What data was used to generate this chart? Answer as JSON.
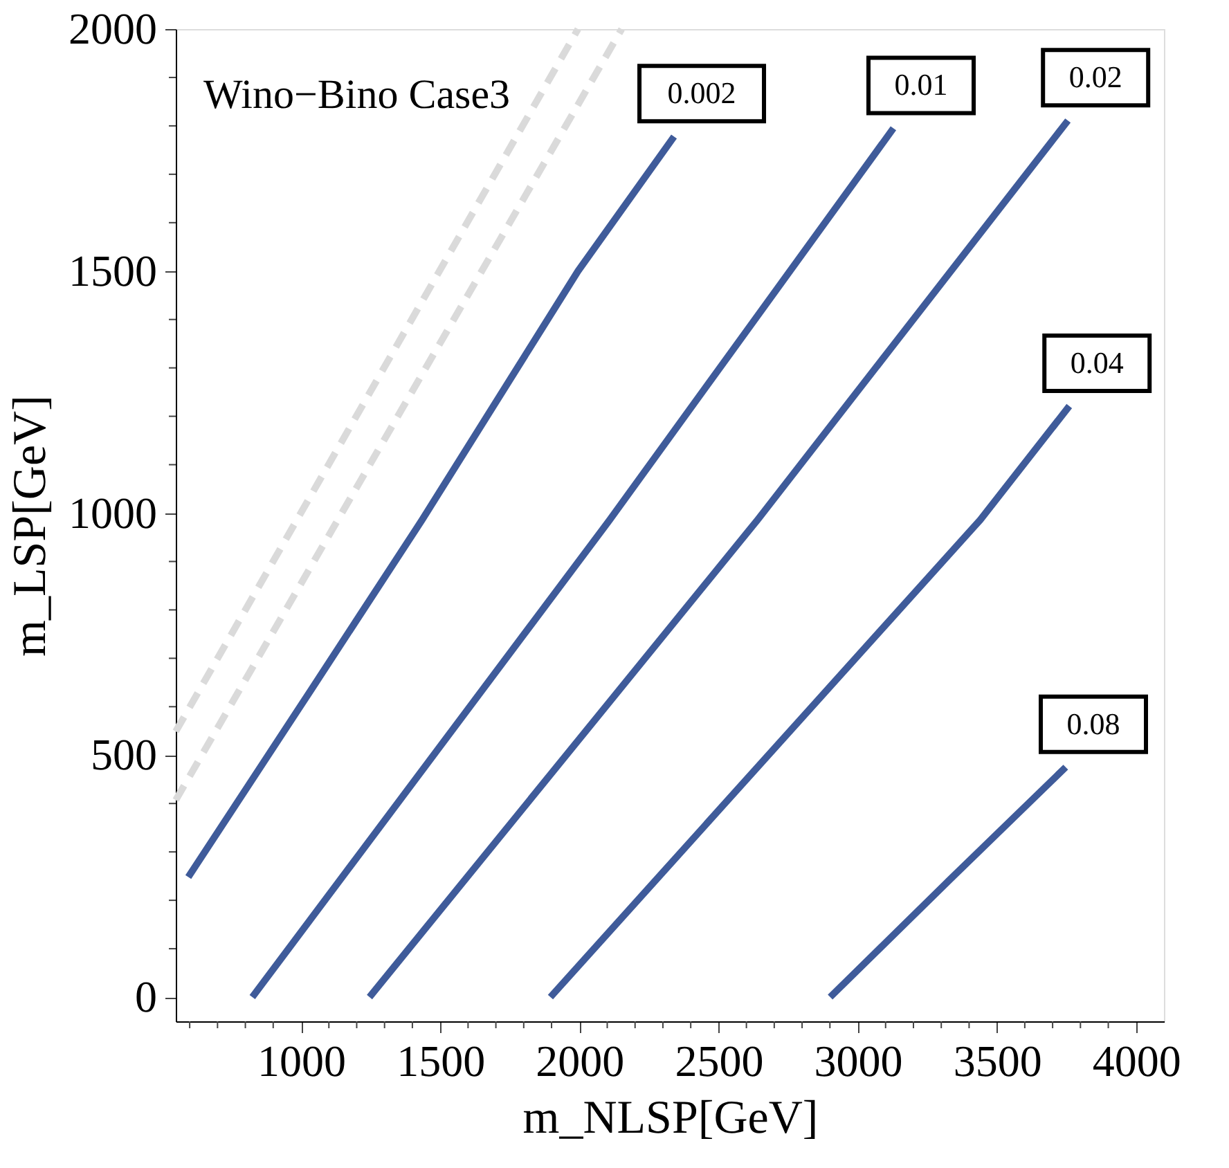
{
  "chart_data": {
    "type": "line",
    "xlabel": "m_NLSP[GeV]",
    "ylabel": "m_LSP[GeV]",
    "xlim": [
      550,
      4100
    ],
    "ylim": [
      -50,
      2000
    ],
    "xticks": [
      {
        "value": 600,
        "label": null
      },
      {
        "value": 700,
        "label": null
      },
      {
        "value": 800,
        "label": null
      },
      {
        "value": 900,
        "label": null
      },
      1000,
      {
        "value": 1100,
        "label": null
      },
      {
        "value": 1200,
        "label": null
      },
      {
        "value": 1300,
        "label": null
      },
      {
        "value": 1400,
        "label": null
      },
      1500,
      {
        "value": 1600,
        "label": null
      },
      {
        "value": 1700,
        "label": null
      },
      {
        "value": 1800,
        "label": null
      },
      {
        "value": 1900,
        "label": null
      },
      2000,
      {
        "value": 2100,
        "label": null
      },
      {
        "value": 2200,
        "label": null
      },
      {
        "value": 2300,
        "label": null
      },
      {
        "value": 2400,
        "label": null
      },
      2500,
      {
        "value": 2600,
        "label": null
      },
      {
        "value": 2700,
        "label": null
      },
      {
        "value": 2800,
        "label": null
      },
      {
        "value": 2900,
        "label": null
      },
      3000,
      {
        "value": 3100,
        "label": null
      },
      {
        "value": 3200,
        "label": null
      },
      {
        "value": 3300,
        "label": null
      },
      {
        "value": 3400,
        "label": null
      },
      3500,
      {
        "value": 3600,
        "label": null
      },
      {
        "value": 3700,
        "label": null
      },
      {
        "value": 3800,
        "label": null
      },
      {
        "value": 3900,
        "label": null
      },
      4000
    ],
    "yticks": [
      0,
      {
        "value": 100,
        "label": null
      },
      {
        "value": 200,
        "label": null
      },
      {
        "value": 300,
        "label": null
      },
      {
        "value": 400,
        "label": null
      },
      500,
      {
        "value": 600,
        "label": null
      },
      {
        "value": 700,
        "label": null
      },
      {
        "value": 800,
        "label": null
      },
      {
        "value": 900,
        "label": null
      },
      1000,
      {
        "value": 1100,
        "label": null
      },
      {
        "value": 1200,
        "label": null
      },
      {
        "value": 1300,
        "label": null
      },
      {
        "value": 1400,
        "label": null
      },
      1500,
      {
        "value": 1600,
        "label": null
      },
      {
        "value": 1700,
        "label": null
      },
      {
        "value": 1800,
        "label": null
      },
      {
        "value": 1900,
        "label": null
      },
      2000
    ],
    "grid": false,
    "series": [
      {
        "color": "#dadada",
        "line_style": "dashed",
        "x": [
          550,
          1995
        ],
        "values": [
          549,
          2000
        ]
      },
      {
        "color": "#dadada",
        "line_style": "dashed",
        "x": [
          550,
          2152
        ],
        "values": [
          407,
          2000
        ]
      },
      {
        "color": "#3f5b9a",
        "line_style": "solid",
        "x": [
          595,
          1033,
          1435,
          1995,
          2340
        ],
        "values": [
          248,
          632,
          986,
          1500,
          1778
        ]
      },
      {
        "color": "#3f5b9a",
        "line_style": "solid",
        "x": [
          825,
          2109,
          3128
        ],
        "values": [
          0,
          986,
          1795
        ]
      },
      {
        "color": "#3f5b9a",
        "line_style": "solid",
        "x": [
          1246,
          2640,
          3755
        ],
        "values": [
          0,
          986,
          1811
        ]
      },
      {
        "color": "#3f5b9a",
        "line_style": "solid",
        "x": [
          1896,
          3440,
          3760
        ],
        "values": [
          0,
          986,
          1221
        ]
      },
      {
        "color": "#3f5b9a",
        "line_style": "solid",
        "x": [
          2901,
          3326,
          3747
        ],
        "values": [
          0,
          240,
          475
        ]
      }
    ],
    "annotations": [
      "Wino−Bino Case3",
      {
        "text": "0.002",
        "x": 2340,
        "y": 1778
      },
      {
        "text": "0.01",
        "x": 3128,
        "y": 1795
      },
      {
        "text": "0.02",
        "x": 3755,
        "y": 1811
      },
      {
        "text": "0.04",
        "x": 3760,
        "y": 1221
      },
      {
        "text": "0.08",
        "x": 3747,
        "y": 475
      }
    ]
  }
}
